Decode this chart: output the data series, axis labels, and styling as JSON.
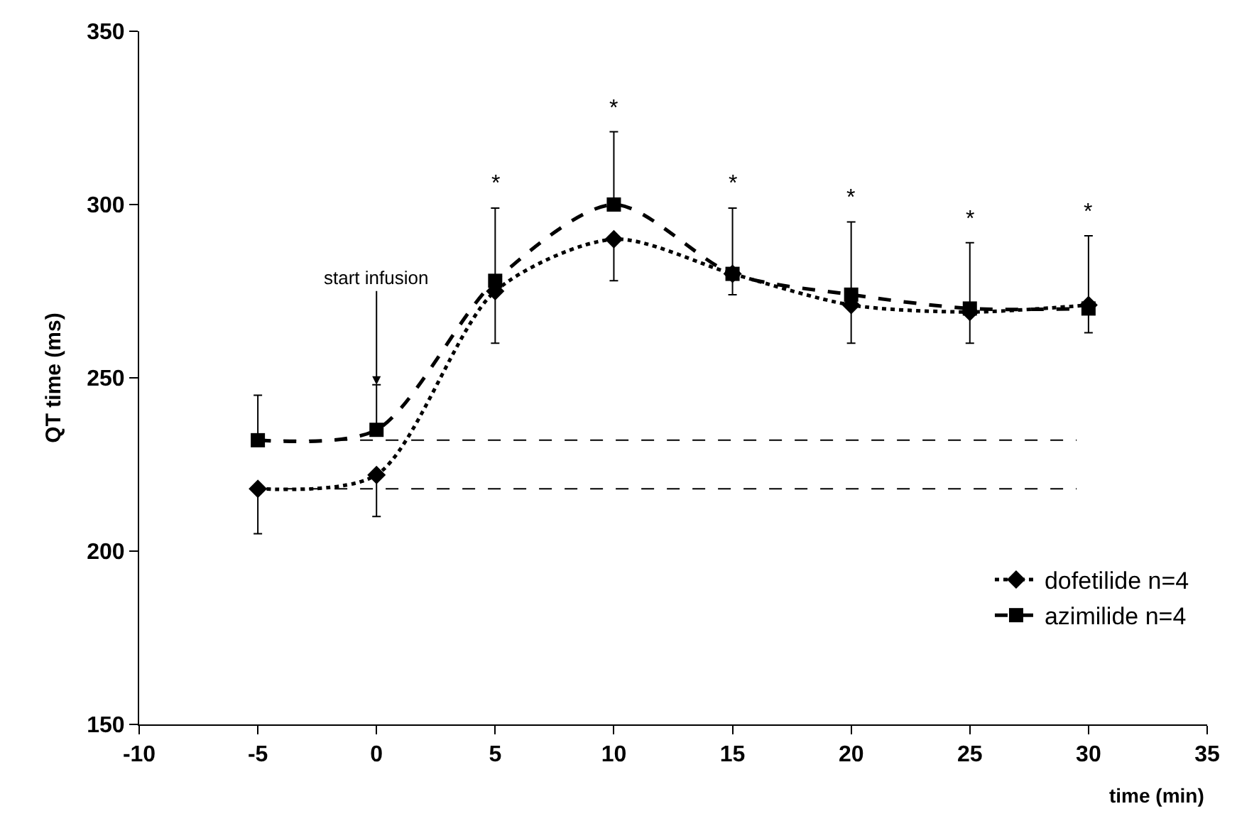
{
  "chart_data": {
    "type": "line",
    "xlabel": "time (min)",
    "ylabel": "QT time (ms)",
    "x": [
      -5,
      0,
      5,
      10,
      15,
      20,
      25,
      30
    ],
    "series": [
      {
        "name": "dofetilide n=4",
        "color": "#000000",
        "marker": "diamond",
        "line_style": "dotted",
        "values": [
          218,
          222,
          275,
          290,
          280,
          271,
          269,
          271
        ],
        "errors": [
          [
            205,
            218
          ],
          [
            210,
            222
          ],
          [
            260,
            275
          ],
          [
            278,
            290
          ],
          [
            274,
            280
          ],
          [
            260,
            271
          ],
          [
            260,
            269
          ],
          [
            263,
            271
          ]
        ]
      },
      {
        "name": "azimilide n=4",
        "color": "#000000",
        "marker": "square",
        "line_style": "dashed",
        "values": [
          232,
          235,
          278,
          300,
          280,
          274,
          270,
          270
        ],
        "errors": [
          [
            232,
            245
          ],
          [
            235,
            248
          ],
          [
            278,
            299
          ],
          [
            300,
            321
          ],
          [
            280,
            299
          ],
          [
            274,
            295
          ],
          [
            270,
            289
          ],
          [
            270,
            291
          ]
        ]
      }
    ],
    "ref_lines": [
      {
        "axis": "y",
        "value": 232,
        "color": "#000000",
        "line_style": "dashed"
      },
      {
        "axis": "y",
        "value": 218,
        "color": "#000000",
        "line_style": "dashed"
      }
    ],
    "annotations": [
      {
        "text": "start infusion",
        "x": 0,
        "y": 248
      },
      {
        "text": "*",
        "x": 5,
        "y": 299
      },
      {
        "text": "*",
        "x": 10,
        "y": 321
      },
      {
        "text": "*",
        "x": 15,
        "y": 299
      },
      {
        "text": "*",
        "x": 20,
        "y": 295
      },
      {
        "text": "*",
        "x": 25,
        "y": 289
      },
      {
        "text": "*",
        "x": 30,
        "y": 291
      }
    ],
    "xlim": [
      -10,
      35
    ],
    "xticks": [
      -10,
      -5,
      0,
      5,
      10,
      15,
      20,
      25,
      30,
      35
    ],
    "ylim": [
      150,
      350
    ],
    "yticks": [
      150,
      200,
      250,
      300,
      350
    ],
    "legend": "bottom right"
  }
}
